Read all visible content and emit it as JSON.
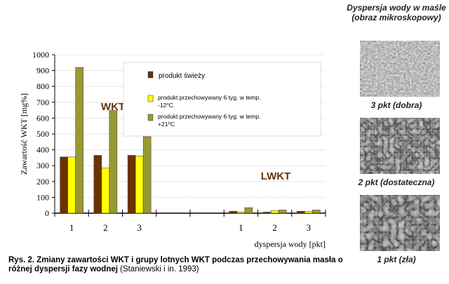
{
  "chart_data": {
    "type": "bar",
    "ylabel": "Zawartość WKT [mg%]",
    "xlabel": "dyspersja wody [pkt]",
    "ylim": [
      0,
      1000
    ],
    "yticks": [
      0,
      100,
      200,
      300,
      400,
      500,
      600,
      700,
      800,
      900,
      1000
    ],
    "grid": true,
    "legend_placement": "top-center",
    "groups": [
      {
        "name": "WKT",
        "categories": [
          "1",
          "2",
          "3"
        ]
      },
      {
        "name": "LWKT",
        "categories": [
          "1",
          "2",
          "3"
        ]
      }
    ],
    "series": [
      {
        "name": "produkt świeży",
        "color": "#6b3300",
        "wkt": [
          355,
          365,
          365
        ],
        "lwkt": [
          12,
          7,
          12
        ]
      },
      {
        "name": "produkt przechowywany 6 tyg. w  temp. -12⁰C",
        "color": "#ffff00",
        "wkt": [
          355,
          285,
          360
        ],
        "lwkt": [
          7,
          17,
          12
        ]
      },
      {
        "name": "produkt przechowywany 6 tyg. w  temp. +21⁰C",
        "color": "#999933",
        "wkt": [
          920,
          648,
          483
        ],
        "lwkt": [
          35,
          20,
          20
        ]
      }
    ]
  },
  "side": {
    "title": "Dyspersja wody w maśle (obraz mikroskopowy)",
    "images": [
      "3 pkt (dobra)",
      "2 pkt (dostateczna)",
      "1 pkt (zła)"
    ]
  },
  "caption": {
    "bold": "Rys. 2. Zmiany zawartości WKT i grupy lotnych WKT podczas przechowywania masła o różnej dyspersji fazy wodnej",
    "normal": " (Staniewski i in. 1993)"
  }
}
